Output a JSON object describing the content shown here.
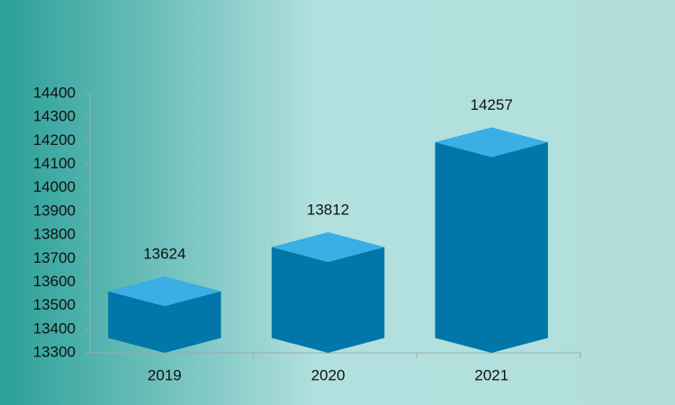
{
  "chart_data": {
    "type": "bar",
    "categories": [
      "2019",
      "2020",
      "2021"
    ],
    "values": [
      13624,
      13812,
      14257
    ],
    "color": "#0077a8",
    "top_color": "#3aaee5",
    "ylim": [
      13300,
      14400
    ],
    "yticks": [
      13300,
      13400,
      13500,
      13600,
      13700,
      13800,
      13900,
      14000,
      14100,
      14200,
      14300,
      14400
    ]
  }
}
